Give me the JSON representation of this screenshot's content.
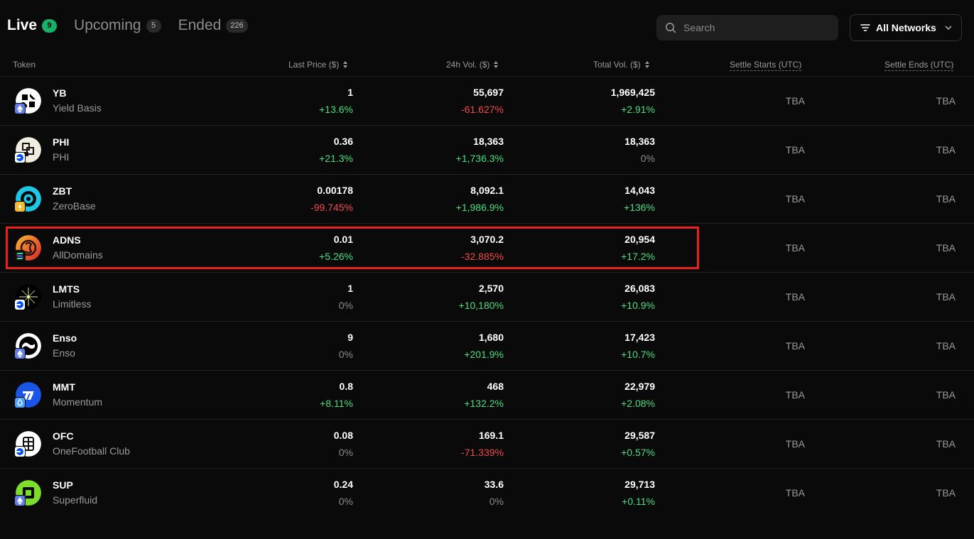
{
  "tabs": [
    {
      "label": "Live",
      "count": "9"
    },
    {
      "label": "Upcoming",
      "count": "5"
    },
    {
      "label": "Ended",
      "count": "226"
    }
  ],
  "search": {
    "placeholder": "Search"
  },
  "network_filter": {
    "label": "All Networks"
  },
  "columns": {
    "token": "Token",
    "last_price": "Last Price ($)",
    "vol_24h": "24h Vol. ($)",
    "total_vol": "Total Vol. ($)",
    "settle_starts": "Settle Starts (UTC)",
    "settle_ends": "Settle Ends (UTC)"
  },
  "rows": [
    {
      "symbol": "YB",
      "name": "Yield Basis",
      "chain": "ethereum",
      "price": "1",
      "price_change": "+13.6%",
      "vol24": "55,697",
      "vol24_change": "-61.627%",
      "total": "1,969,425",
      "total_change": "+2.91%",
      "settle_start": "TBA",
      "settle_end": "TBA"
    },
    {
      "symbol": "PHI",
      "name": "PHI",
      "chain": "base",
      "price": "0.36",
      "price_change": "+21.3%",
      "vol24": "18,363",
      "vol24_change": "+1,736.3%",
      "total": "18,363",
      "total_change": "0%",
      "settle_start": "TBA",
      "settle_end": "TBA"
    },
    {
      "symbol": "ZBT",
      "name": "ZeroBase",
      "chain": "bnb",
      "price": "0.00178",
      "price_change": "-99.745%",
      "vol24": "8,092.1",
      "vol24_change": "+1,986.9%",
      "total": "14,043",
      "total_change": "+136%",
      "settle_start": "TBA",
      "settle_end": "TBA"
    },
    {
      "symbol": "ADNS",
      "name": "AllDomains",
      "chain": "solana",
      "price": "0.01",
      "price_change": "+5.26%",
      "vol24": "3,070.2",
      "vol24_change": "-32.885%",
      "total": "20,954",
      "total_change": "+17.2%",
      "settle_start": "TBA",
      "settle_end": "TBA"
    },
    {
      "symbol": "LMTS",
      "name": "Limitless",
      "chain": "base",
      "price": "1",
      "price_change": "0%",
      "vol24": "2,570",
      "vol24_change": "+10,180%",
      "total": "26,083",
      "total_change": "+10.9%",
      "settle_start": "TBA",
      "settle_end": "TBA"
    },
    {
      "symbol": "Enso",
      "name": "Enso",
      "chain": "ethereum",
      "price": "9",
      "price_change": "0%",
      "vol24": "1,680",
      "vol24_change": "+201.9%",
      "total": "17,423",
      "total_change": "+10.7%",
      "settle_start": "TBA",
      "settle_end": "TBA"
    },
    {
      "symbol": "MMT",
      "name": "Momentum",
      "chain": "sui",
      "price": "0.8",
      "price_change": "+8.11%",
      "vol24": "468",
      "vol24_change": "+132.2%",
      "total": "22,979",
      "total_change": "+2.08%",
      "settle_start": "TBA",
      "settle_end": "TBA"
    },
    {
      "symbol": "OFC",
      "name": "OneFootball Club",
      "chain": "base",
      "price": "0.08",
      "price_change": "0%",
      "vol24": "169.1",
      "vol24_change": "-71.339%",
      "total": "29,587",
      "total_change": "+0.57%",
      "settle_start": "TBA",
      "settle_end": "TBA"
    },
    {
      "symbol": "SUP",
      "name": "Superfluid",
      "chain": "ethereum",
      "price": "0.24",
      "price_change": "0%",
      "vol24": "33.6",
      "vol24_change": "0%",
      "total": "29,713",
      "total_change": "+0.11%",
      "settle_start": "TBA",
      "settle_end": "TBA"
    }
  ],
  "colors": {
    "background": "#0a0a0a",
    "positive": "#4ade80",
    "negative": "#f04a4a",
    "live_badge": "#17b26a",
    "highlight_box": "#e8221b"
  }
}
